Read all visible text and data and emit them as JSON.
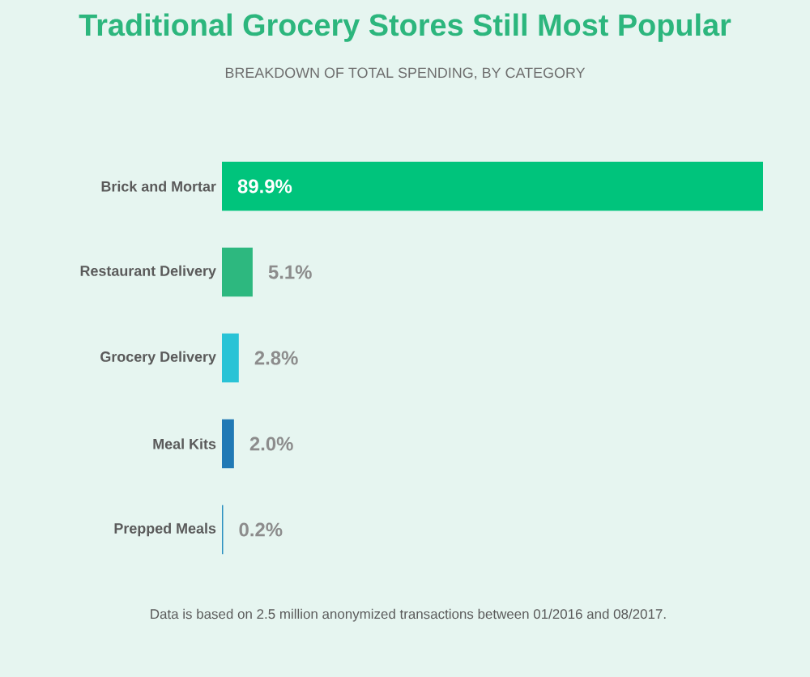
{
  "chart_data": {
    "type": "bar",
    "orientation": "horizontal",
    "title": "Traditional Grocery Stores Still Most Popular",
    "subtitle": "BREAKDOWN OF TOTAL SPENDING, BY CATEGORY",
    "categories": [
      "Brick and Mortar",
      "Restaurant Delivery",
      "Grocery Delivery",
      "Meal Kits",
      "Prepped Meals"
    ],
    "values": [
      89.9,
      5.1,
      2.8,
      2.0,
      0.2
    ],
    "value_labels": [
      "89.9%",
      "5.1%",
      "2.8%",
      "2.0%",
      "0.2%"
    ],
    "colors": [
      "#00c47c",
      "#2db87f",
      "#29c3d6",
      "#2179b5",
      "#2a8fc0"
    ],
    "xlim": [
      0,
      89.9
    ],
    "tick_labels": "y",
    "annotations": [
      "Data is based on 2.5 million anonymized transactions between 01/2016 and 08/2017."
    ]
  }
}
